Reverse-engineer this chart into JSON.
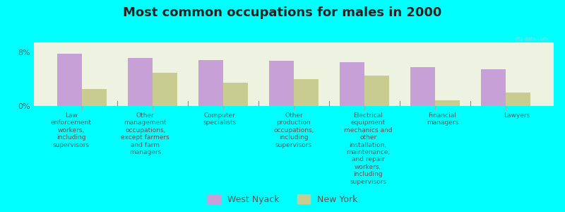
{
  "title": "Most common occupations for males in 2000",
  "background_color": "#00FFFF",
  "plot_background": "#eef2e0",
  "categories": [
    "Law\nenforcement\nworkers,\nincluding\nsupervisors",
    "Other\nmanagement\noccupations,\nexcept farmers\nand farm\nmanagers",
    "Computer\nspecialists",
    "Other\nproduction\noccupations,\nincluding\nsupervisors",
    "Electrical\nequipment\nmechanics and\nother\ninstallation,\nmaintenance,\nand repair\nworkers,\nincluding\nsupervisors",
    "Financial\nmanagers",
    "Lawyers"
  ],
  "west_nyack": [
    7.8,
    7.2,
    6.9,
    6.8,
    6.5,
    5.8,
    5.5
  ],
  "new_york": [
    2.5,
    5.0,
    3.5,
    4.0,
    4.5,
    0.8,
    2.0
  ],
  "west_nyack_color": "#c8a0d8",
  "new_york_color": "#c8cc90",
  "ylim": [
    0,
    9.5
  ],
  "yticks": [
    0,
    8
  ],
  "ytick_labels": [
    "0%",
    "8%"
  ],
  "legend_labels": [
    "West Nyack",
    "New York"
  ],
  "bar_width": 0.35,
  "watermark": "city-data.com"
}
